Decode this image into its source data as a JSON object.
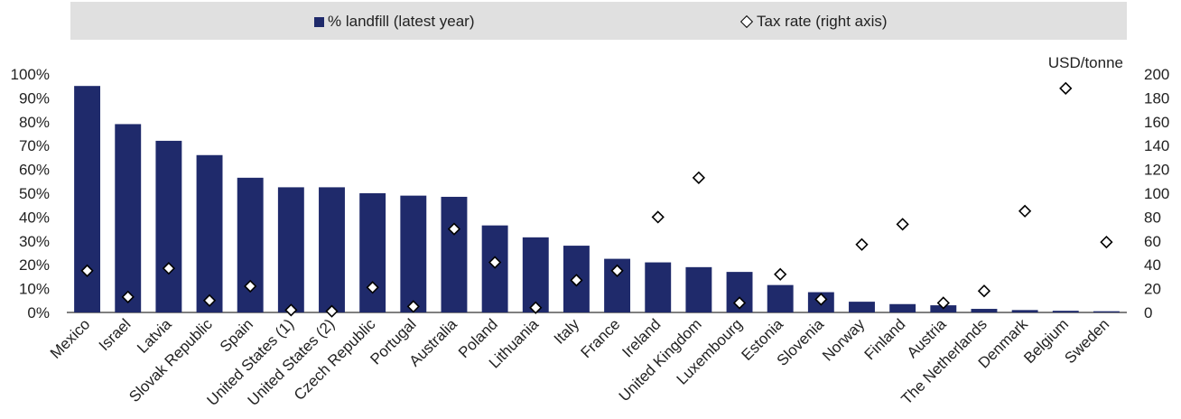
{
  "legend": {
    "bar_label": "% landfill (latest year)",
    "marker_label": "Tax rate (right axis)"
  },
  "colors": {
    "bar": "#1f2a6b",
    "marker_fill": "#ffffff",
    "marker_stroke": "#000000",
    "legend_bg": "#e0e0e0"
  },
  "chart_data": {
    "type": "bar",
    "categories": [
      "Mexico",
      "Israel",
      "Latvia",
      "Slovak Republic",
      "Spain",
      "United States (1)",
      "United States (2)",
      "Czech Republic",
      "Portugal",
      "Australia",
      "Poland",
      "Lithuania",
      "Italy",
      "France",
      "Ireland",
      "United Kingdom",
      "Luxembourg",
      "Estonia",
      "Slovenia",
      "Norway",
      "Finland",
      "Austria",
      "The Netherlands",
      "Denmark",
      "Belgium",
      "Sweden"
    ],
    "series": [
      {
        "name": "% landfill (latest year)",
        "type": "bar",
        "axis": "left",
        "values": [
          95,
          79,
          72,
          66,
          56.5,
          52.5,
          52.5,
          50,
          49,
          48.5,
          36.5,
          31.5,
          28,
          22.5,
          21,
          19,
          17,
          11.5,
          8.5,
          4.5,
          3.5,
          3,
          1.5,
          1,
          0.7,
          0.5
        ]
      },
      {
        "name": "Tax rate (right axis)",
        "type": "scatter",
        "axis": "right",
        "values": [
          35,
          13,
          37,
          10,
          22,
          2,
          1,
          21,
          5,
          70,
          42,
          4,
          27,
          35,
          80,
          113,
          8,
          32,
          11,
          57,
          74,
          8,
          18,
          85,
          188,
          59
        ]
      }
    ],
    "y_left": {
      "min": 0,
      "max": 100,
      "step": 10,
      "suffix": "%"
    },
    "y_right": {
      "min": 0,
      "max": 200,
      "step": 20,
      "unit_label": "USD/tonne"
    },
    "grid": false,
    "legend_position": "top"
  }
}
